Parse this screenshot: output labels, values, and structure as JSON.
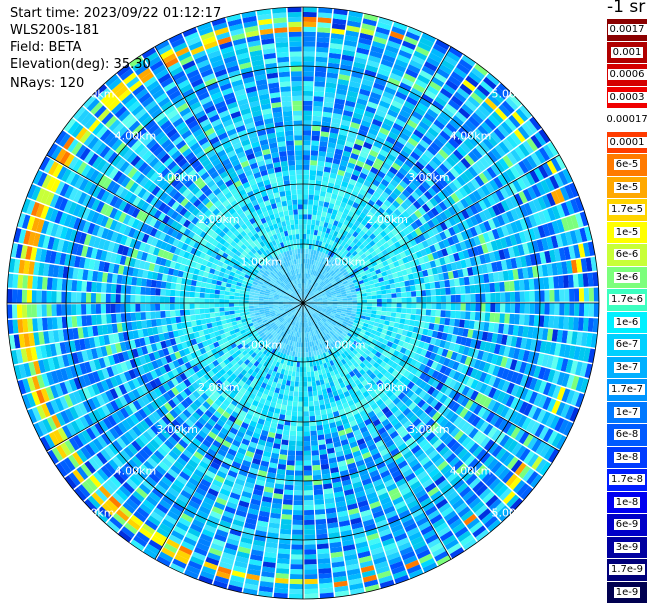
{
  "header": {
    "start_time": "Start time: 2023/09/22 01:12:17",
    "instrument": "WLS200s-181",
    "field": "Field: BETA",
    "elevation": "Elevation(deg): 35.30",
    "nrays": "NRays: 120"
  },
  "colorbar": {
    "unit": "-1 sr",
    "labels": [
      "0.0017",
      "0.001",
      "0.0006",
      "0.0003",
      "0.00017",
      "0.0001",
      "6e-5",
      "3e-5",
      "1.7e-5",
      "1e-5",
      "6e-6",
      "3e-6",
      "1.7e-6",
      "1e-6",
      "6e-7",
      "3e-7",
      "1.7e-7",
      "1e-7",
      "6e-8",
      "3e-8",
      "1.7e-8",
      "1e-8",
      "6e-9",
      "3e-9",
      "1.7e-9",
      "1e-9"
    ],
    "colors": [
      "#8b0000",
      "#b00000",
      "#d40000",
      "#f00000",
      "#ffffff",
      "#ff3c00",
      "#ff7a00",
      "#ffa800",
      "#ffd400",
      "#ffff00",
      "#c8ff38",
      "#7cff7c",
      "#3cffc0",
      "#00f0ff",
      "#00d0ff",
      "#00b0ff",
      "#0096ff",
      "#0078ff",
      "#005aff",
      "#003cff",
      "#001eff",
      "#0000f0",
      "#0000c8",
      "#0000a0",
      "#00007a",
      "#000050"
    ]
  },
  "ppi": {
    "ring_labels": [
      "1.00km",
      "2.00km",
      "3.00km",
      "4.00km",
      "5.00km"
    ],
    "n_rays": 120,
    "n_gates": 60,
    "bright_ring_fraction": 0.93
  }
}
